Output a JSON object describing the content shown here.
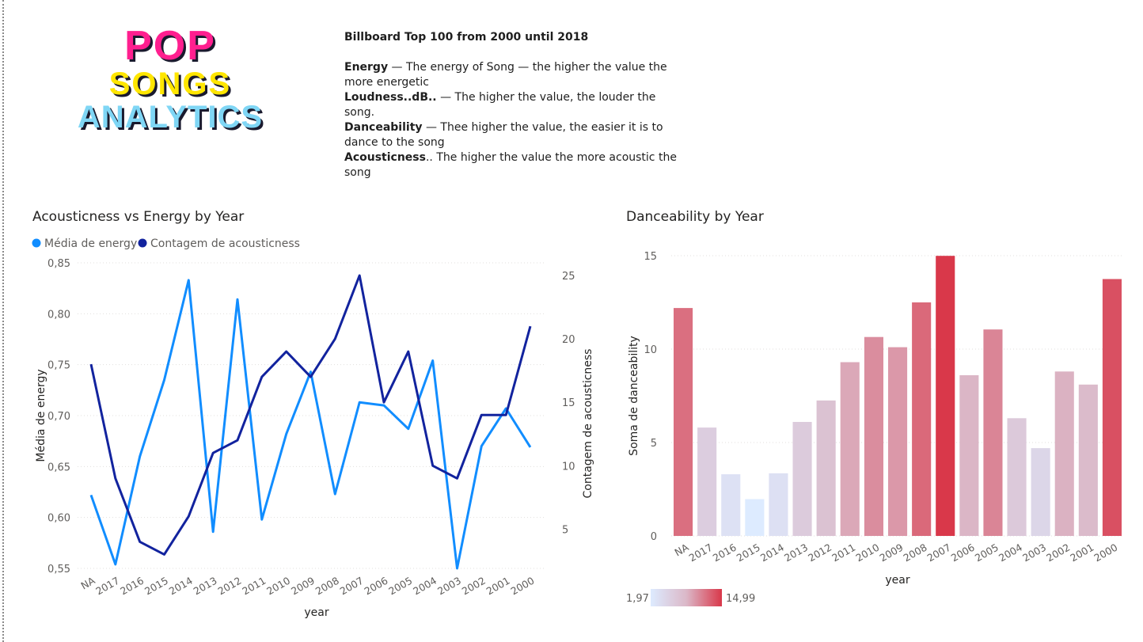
{
  "logo": {
    "line1": "POP",
    "line2": "SONGS",
    "line3": "ANALYTICS"
  },
  "description": {
    "title": "Billboard Top 100 from 2000 until 2018",
    "items": [
      {
        "term": "Energy",
        "text": " — The energy of Song — the higher the value the more energetic"
      },
      {
        "term": "Loudness..dB..",
        "text": " — The higher the value, the louder the song."
      },
      {
        "term": "Danceability",
        "text": " — Thee higher the value, the easier it is to dance to the song"
      },
      {
        "term": "Acousticness",
        "text": ".. The higher the value the more acoustic the song"
      }
    ]
  },
  "chart_data": [
    {
      "type": "line",
      "title": "Acousticness vs Energy by Year",
      "xlabel": "year",
      "ylabel": "Média de energy",
      "y2label": "Contagem de acousticness",
      "categories": [
        "NA",
        "2017",
        "2016",
        "2015",
        "2014",
        "2013",
        "2012",
        "2011",
        "2010",
        "2009",
        "2008",
        "2007",
        "2006",
        "2005",
        "2004",
        "2003",
        "2002",
        "2001",
        "2000"
      ],
      "ylim": [
        0.55,
        0.85
      ],
      "yticks": [
        "0,55",
        "0,60",
        "0,65",
        "0,70",
        "0,75",
        "0,80",
        "0,85"
      ],
      "y2lim": [
        1.9,
        26
      ],
      "y2ticks": [
        "5",
        "10",
        "15",
        "20",
        "25"
      ],
      "series": [
        {
          "name": "Média de energy",
          "axis": "left",
          "color": "#118DFF",
          "values": [
            0.622,
            0.554,
            0.66,
            0.735,
            0.833,
            0.586,
            0.814,
            0.598,
            0.682,
            0.743,
            0.623,
            0.713,
            0.71,
            0.687,
            0.754,
            0.55,
            0.67,
            0.707,
            0.669
          ]
        },
        {
          "name": "Contagem de acousticness",
          "axis": "right",
          "color": "#12239E",
          "values": [
            18,
            9,
            4,
            3,
            6,
            11,
            12,
            17,
            19,
            17,
            20,
            25,
            15,
            19,
            10,
            9,
            14,
            14,
            21
          ]
        }
      ],
      "legend": "top-left"
    },
    {
      "type": "bar",
      "title": "Danceability by Year",
      "xlabel": "year",
      "ylabel": "Soma de danceability",
      "categories": [
        "NA",
        "2017",
        "2016",
        "2015",
        "2014",
        "2013",
        "2012",
        "2011",
        "2010",
        "2009",
        "2008",
        "2007",
        "2006",
        "2005",
        "2004",
        "2003",
        "2002",
        "2001",
        "2000"
      ],
      "values": [
        12.2,
        5.8,
        3.3,
        1.97,
        3.35,
        6.1,
        7.25,
        9.3,
        10.65,
        10.1,
        12.5,
        14.99,
        8.6,
        11.05,
        6.3,
        4.7,
        8.8,
        8.1,
        13.75
      ],
      "ylim": [
        0,
        15
      ],
      "yticks": [
        "0",
        "5",
        "10",
        "15"
      ],
      "color_scale": {
        "min_label": "1,97",
        "max_label": "14,99",
        "min": 1.97,
        "max": 14.99,
        "min_color": "#DDEBFF",
        "mid_color": "#DBB8C8",
        "max_color": "#D9384A"
      }
    }
  ]
}
